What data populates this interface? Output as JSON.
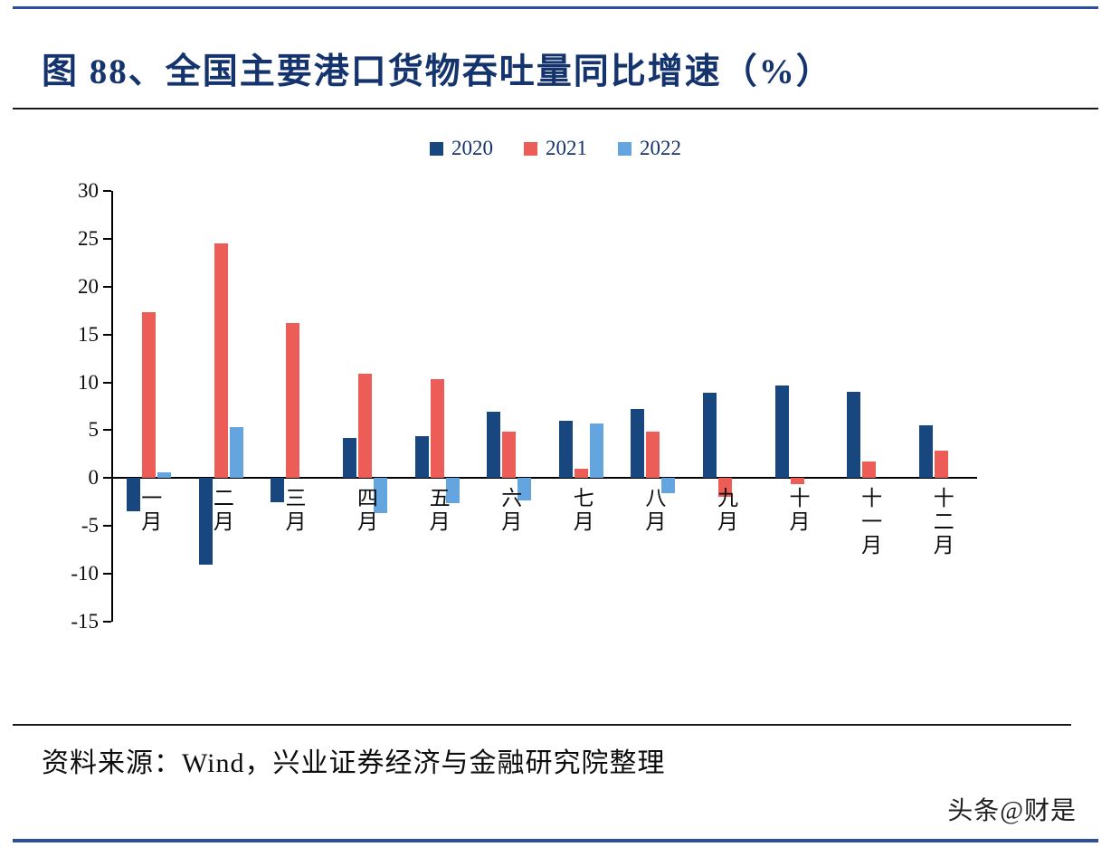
{
  "header": {
    "title": "图 88、全国主要港口货物吞吐量同比增速（%）"
  },
  "footer": {
    "source": "资料来源：Wind，兴业证券经济与金融研究院整理"
  },
  "page": {
    "watermark": "头条@财是"
  },
  "chart_data": {
    "type": "bar",
    "title": "全国主要港口货物吞吐量同比增速（%）",
    "categories": [
      "一月",
      "二月",
      "三月",
      "四月",
      "五月",
      "六月",
      "七月",
      "八月",
      "九月",
      "十月",
      "十一月",
      "十二月"
    ],
    "series": [
      {
        "name": "2020",
        "color": "#17477e",
        "values": [
          -3.5,
          -9.0,
          -2.5,
          4.2,
          4.4,
          6.9,
          6.0,
          7.2,
          8.9,
          9.7,
          9.0,
          5.5
        ]
      },
      {
        "name": "2021",
        "color": "#ec5d57",
        "values": [
          17.3,
          24.5,
          16.2,
          10.9,
          10.3,
          4.9,
          1.0,
          4.9,
          -2.0,
          -0.6,
          1.7,
          2.9
        ]
      },
      {
        "name": "2022",
        "color": "#64a4df",
        "values": [
          0.6,
          5.3,
          null,
          -3.7,
          -2.6,
          -2.3,
          5.7,
          -1.6,
          null,
          null,
          null,
          null
        ]
      }
    ],
    "ylim": [
      -15,
      30
    ],
    "ytick_step": 5,
    "yticks": [
      30,
      25,
      20,
      15,
      10,
      5,
      0,
      -5,
      -10,
      -15
    ],
    "xlabel": "",
    "ylabel": "",
    "grid": false,
    "legend_position": "top"
  }
}
